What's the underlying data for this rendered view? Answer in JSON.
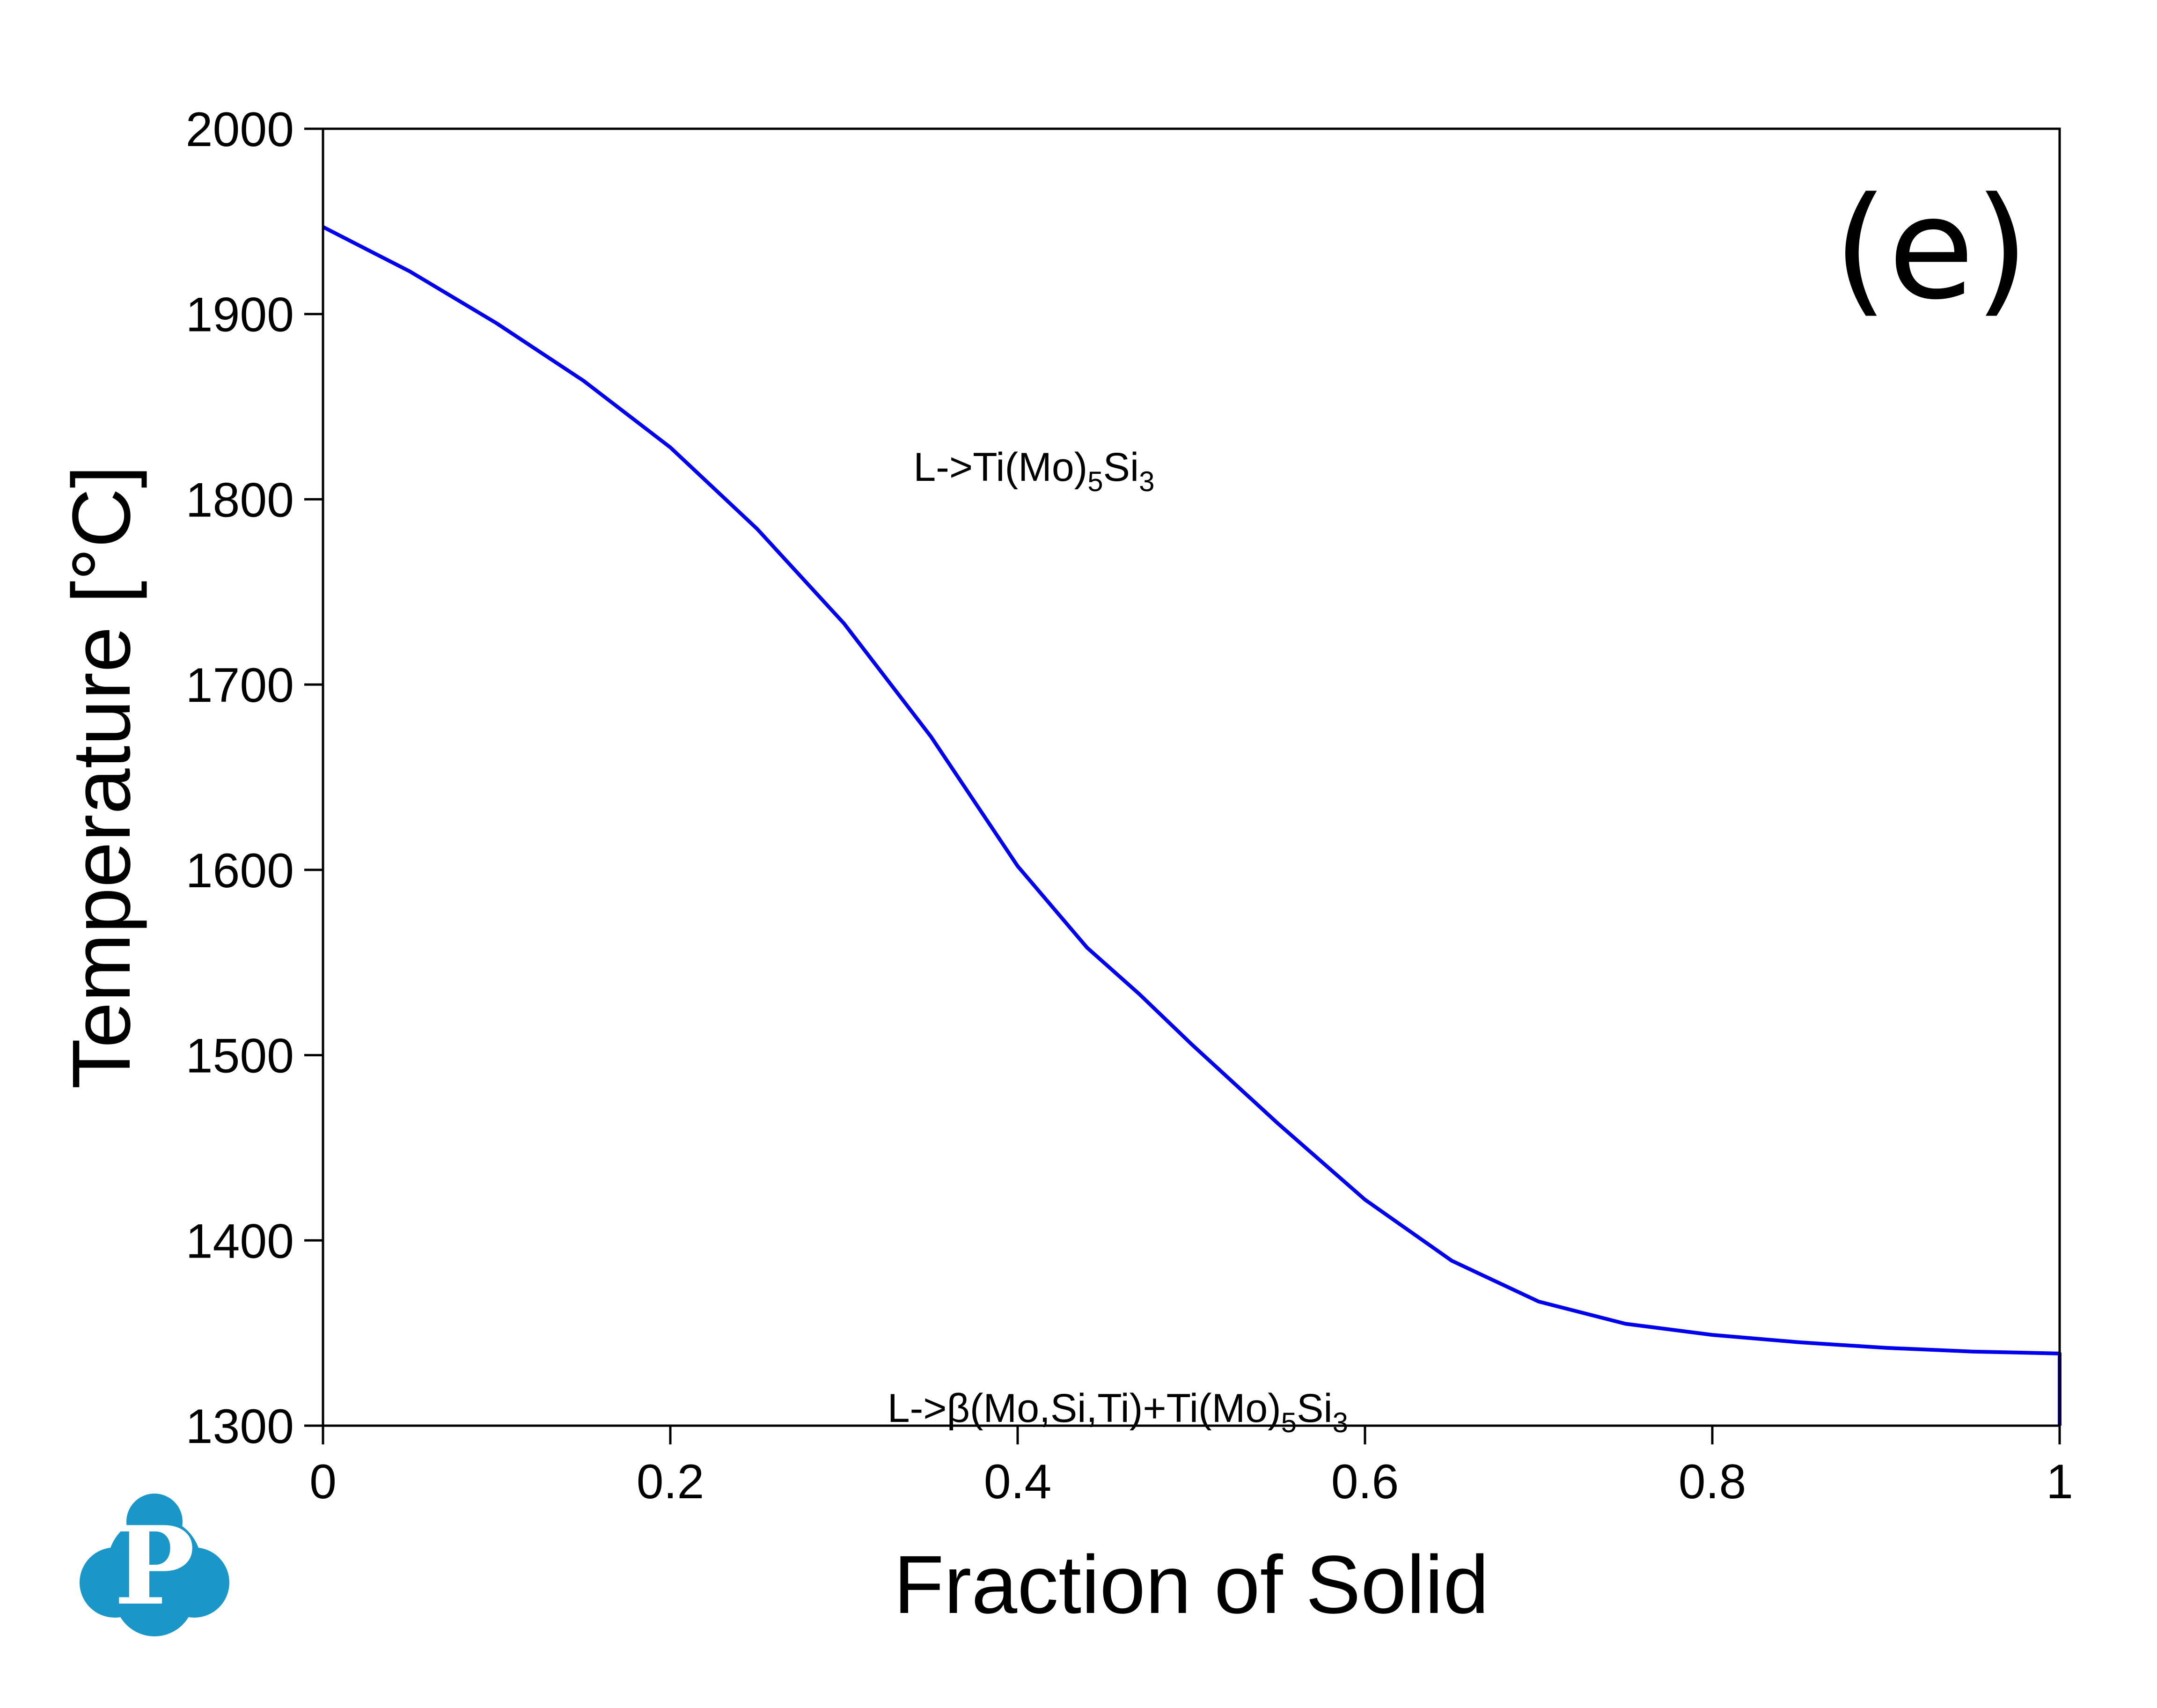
{
  "chart_data": {
    "type": "line",
    "title": "",
    "panel_label": "(e)",
    "xlabel": "Fraction of Solid",
    "ylabel": "Temperature [°C]",
    "xlim": [
      0,
      1
    ],
    "ylim": [
      1300,
      2000
    ],
    "x_ticks": [
      0,
      0.2,
      0.4,
      0.6,
      0.8,
      1
    ],
    "x_tick_labels": [
      "0",
      "0.2",
      "0.4",
      "0.6",
      "0.8",
      "1"
    ],
    "y_ticks": [
      1300,
      1400,
      1500,
      1600,
      1700,
      1800,
      1900,
      2000
    ],
    "y_tick_labels": [
      "1300",
      "1400",
      "1500",
      "1600",
      "1700",
      "1800",
      "1900",
      "2000"
    ],
    "grid": false,
    "series": [
      {
        "color": "#0000ee",
        "x": [
          0,
          0.05,
          0.1,
          0.15,
          0.2,
          0.25,
          0.3,
          0.35,
          0.4,
          0.44,
          0.47,
          0.5,
          0.55,
          0.6,
          0.65,
          0.7,
          0.75,
          0.8,
          0.85,
          0.9,
          0.95,
          0.998,
          1.0,
          1.0
        ],
        "y": [
          1947,
          1923,
          1895,
          1864,
          1828,
          1784,
          1733,
          1672,
          1602,
          1558,
          1533,
          1506,
          1463,
          1422,
          1389,
          1367,
          1355,
          1349,
          1345,
          1342,
          1340,
          1339,
          1339,
          1300
        ]
      }
    ],
    "annotations": [
      {
        "prefix": "L->",
        "formula": [
          "Ti(Mo)",
          "5",
          "Si",
          "3"
        ],
        "x": 0.34,
        "y": 1810
      },
      {
        "prefix": "L->β",
        "formula": [
          "(Mo,Si,Ti)+Ti(Mo)",
          "5",
          "Si",
          "3"
        ],
        "x": 0.325,
        "y": 1302
      }
    ]
  },
  "logo": {
    "letter": "P",
    "color": "#1a96c8"
  }
}
